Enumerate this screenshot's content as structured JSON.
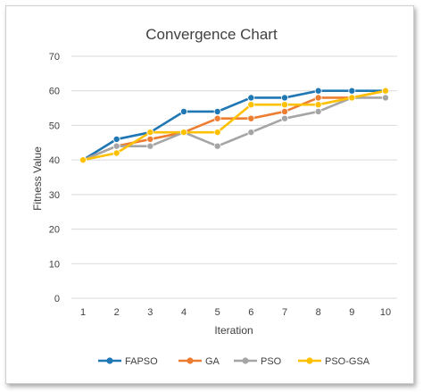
{
  "chart_data": {
    "type": "line",
    "title": "Convergence Chart",
    "xlabel": "Iteration",
    "ylabel": "Fitness Value",
    "x": [
      1,
      2,
      3,
      4,
      5,
      6,
      7,
      8,
      9,
      10
    ],
    "ylim": [
      0,
      70
    ],
    "yticks": [
      0,
      10,
      20,
      30,
      40,
      50,
      60,
      70
    ],
    "grid": true,
    "legend": "bottom",
    "series": [
      {
        "name": "FAPSO",
        "color": "#1f77b4",
        "values": [
          40,
          46,
          48,
          54,
          54,
          58,
          58,
          60,
          60,
          60
        ]
      },
      {
        "name": "GA",
        "color": "#ed7d31",
        "values": [
          40,
          44,
          46,
          48,
          52,
          52,
          54,
          58,
          58,
          60
        ]
      },
      {
        "name": "PSO",
        "color": "#a5a5a5",
        "values": [
          40,
          44,
          44,
          48,
          44,
          48,
          52,
          54,
          58,
          58
        ]
      },
      {
        "name": "PSO-GSA",
        "color": "#ffc000",
        "values": [
          40,
          42,
          48,
          48,
          48,
          56,
          56,
          56,
          58,
          60
        ]
      }
    ]
  }
}
